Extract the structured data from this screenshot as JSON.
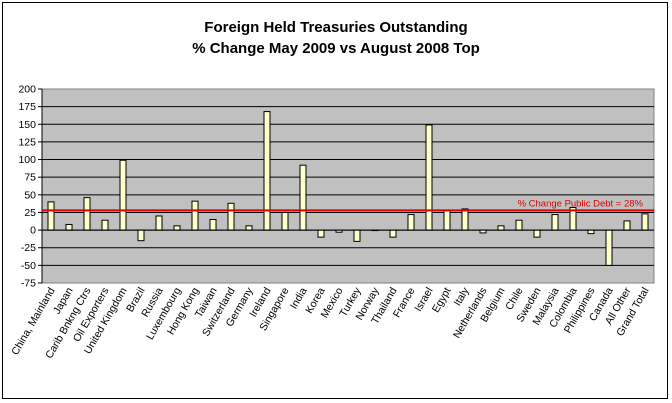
{
  "chart_data": {
    "type": "bar",
    "title": "Foreign Held Treasuries Outstanding",
    "subtitle": "% Change May 2009 vs August 2008 Top",
    "xlabel": "",
    "ylabel": "",
    "ylim": [
      -75,
      200
    ],
    "yticks": [
      200,
      175,
      150,
      125,
      100,
      75,
      50,
      25,
      0,
      -25,
      -50,
      -75
    ],
    "grid": true,
    "plot_background": "#c0c0c0",
    "bar_color": "#ffffcc",
    "categories": [
      "China, Mainland",
      "Japan",
      "Carib Bnkng Ctrs",
      "Oil Exporters",
      "United Kingdom",
      "Brazil",
      "Russia",
      "Luxembourg",
      "Hong Kong",
      "Taiwan",
      "Switzerland",
      "Germany",
      "Ireland",
      "Singapore",
      "India",
      "Korea",
      "Mexico",
      "Turkey",
      "Norway",
      "Thailand",
      "France",
      "Israel",
      "Egypt",
      "Italy",
      "Netherlands",
      "Belgium",
      "Chile",
      "Sweden",
      "Malaysia",
      "Colombia",
      "Philippines",
      "Canada",
      "All Other",
      "Grand Total"
    ],
    "values": [
      40,
      8,
      46,
      14,
      99,
      -15,
      20,
      6,
      41,
      15,
      38,
      6,
      168,
      25,
      92,
      -10,
      -3,
      -16,
      0,
      -10,
      22,
      149,
      28,
      30,
      -4,
      6,
      14,
      -10,
      22,
      32,
      -5,
      -50,
      13,
      23
    ],
    "reference_line": {
      "value": 28,
      "label": "% Change Public Debt = 28%",
      "color": "#e00000"
    }
  }
}
